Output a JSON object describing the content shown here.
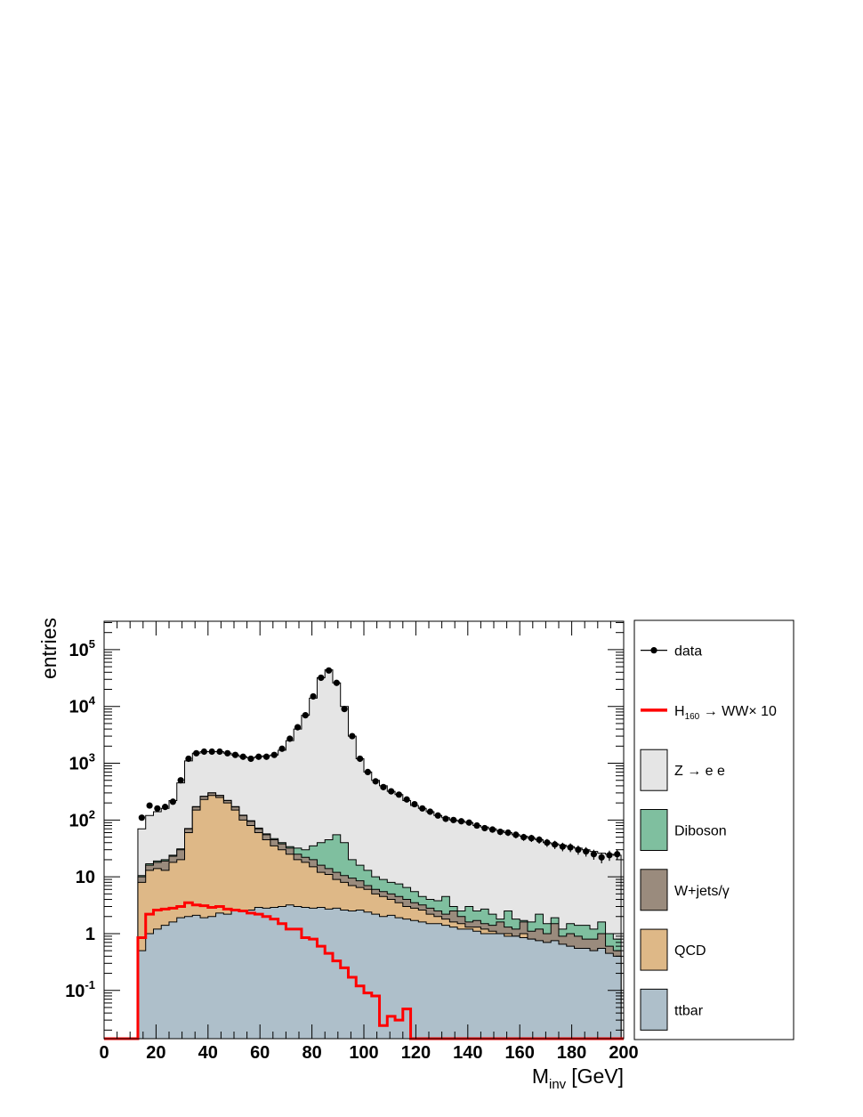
{
  "chart_data": {
    "type": "histogram",
    "title": "",
    "xlabel": "M",
    "xlabel_sub": "inv",
    "xlabel_unit": "[GeV]",
    "ylabel": "entries",
    "xlim": [
      0,
      200
    ],
    "ylim_log": [
      -1.85,
      5.5
    ],
    "log_y": true,
    "grid": false,
    "legend_position": "right",
    "xticks": [
      {
        "value": 0,
        "label": "0"
      },
      {
        "value": 20,
        "label": "20"
      },
      {
        "value": 40,
        "label": "40"
      },
      {
        "value": 60,
        "label": "60"
      },
      {
        "value": 80,
        "label": "80"
      },
      {
        "value": 100,
        "label": "100"
      },
      {
        "value": 120,
        "label": "120"
      },
      {
        "value": 140,
        "label": "140"
      },
      {
        "value": 160,
        "label": "160"
      },
      {
        "value": 180,
        "label": "180"
      },
      {
        "value": 200,
        "label": "200"
      }
    ],
    "yticks": [
      {
        "value": -1,
        "base": "10",
        "exp": "-1"
      },
      {
        "value": 0,
        "base": "1",
        "exp": ""
      },
      {
        "value": 1,
        "base": "10",
        "exp": ""
      },
      {
        "value": 2,
        "base": "10",
        "exp": "2"
      },
      {
        "value": 3,
        "base": "10",
        "exp": "3"
      },
      {
        "value": 4,
        "base": "10",
        "exp": "4"
      },
      {
        "value": 5,
        "base": "10",
        "exp": "5"
      }
    ],
    "bins_x": [
      13,
      16,
      19,
      22,
      25,
      28,
      31,
      34,
      37,
      40,
      43,
      46,
      49,
      52,
      55,
      58,
      61,
      64,
      67,
      70,
      73,
      76,
      79,
      82,
      85,
      88,
      91,
      94,
      97,
      100,
      103,
      106,
      109,
      112,
      115,
      118,
      121,
      124,
      127,
      130,
      133,
      136,
      139,
      142,
      145,
      148,
      151,
      154,
      157,
      160,
      163,
      166,
      169,
      172,
      175,
      178,
      181,
      184,
      187,
      190,
      193,
      196,
      199
    ],
    "stack": [
      {
        "name": "ttbar",
        "color": "#aebfca",
        "cumulative": [
          0.5,
          1.0,
          1.2,
          1.4,
          1.6,
          1.9,
          2.0,
          2.1,
          1.9,
          2.0,
          2.3,
          2.2,
          2.5,
          2.5,
          2.6,
          2.9,
          2.8,
          2.9,
          3.0,
          3.2,
          3.0,
          2.9,
          2.8,
          2.9,
          2.7,
          2.8,
          2.6,
          2.5,
          2.6,
          2.4,
          2.2,
          2.0,
          2.1,
          1.9,
          1.8,
          1.7,
          1.6,
          1.5,
          1.5,
          1.4,
          1.3,
          1.2,
          1.2,
          1.1,
          1.0,
          1.0,
          1.0,
          0.9,
          0.9,
          0.85,
          0.8,
          0.75,
          0.7,
          0.75,
          0.65,
          0.6,
          0.55,
          0.55,
          0.5,
          0.55,
          0.45,
          0.4
        ]
      },
      {
        "name": "QCD",
        "color": "#deb887",
        "cumulative": [
          8.0,
          13.0,
          14.0,
          13.0,
          18.0,
          20.0,
          60.0,
          150.0,
          230.0,
          270.0,
          250.0,
          200.0,
          150.0,
          100.0,
          80.0,
          60.0,
          45.0,
          35.0,
          30.0,
          25.0,
          20.0,
          18.0,
          15.0,
          12.0,
          11.0,
          9.0,
          8.0,
          7.0,
          6.5,
          6.0,
          5.0,
          4.5,
          4.0,
          3.5,
          3.0,
          2.8,
          2.6,
          2.2,
          2.0,
          1.8,
          1.6,
          1.5,
          1.3,
          1.3,
          1.2,
          1.1,
          1.0,
          1.0,
          0.9,
          1.0,
          0.8,
          0.7,
          0.65,
          0.7,
          0.6,
          0.55,
          0.5,
          0.5,
          0.45,
          0.55,
          0.35,
          0.3
        ]
      },
      {
        "name": "W+jets/γ",
        "color": "#9a8b7d",
        "cumulative": [
          10.0,
          16.0,
          18.0,
          19.0,
          23.0,
          30.0,
          70.0,
          170.0,
          260.0,
          300.0,
          270.0,
          220.0,
          170.0,
          120.0,
          95.0,
          70.0,
          55.0,
          45.0,
          38.0,
          32.0,
          25.0,
          22.0,
          20.0,
          16.0,
          14.0,
          12.0,
          10.5,
          9.5,
          8.5,
          7.0,
          6.0,
          5.5,
          5.0,
          4.5,
          4.0,
          3.5,
          3.2,
          2.8,
          2.5,
          2.2,
          2.5,
          2.0,
          1.6,
          1.7,
          1.5,
          1.4,
          1.6,
          1.3,
          1.2,
          1.6,
          1.1,
          1.2,
          1.0,
          1.5,
          0.9,
          1.0,
          0.9,
          0.8,
          0.8,
          1.0,
          0.6,
          0.5
        ]
      },
      {
        "name": "Diboson",
        "color": "#7fbf9f",
        "cumulative": [
          10.5,
          17.0,
          19.0,
          20.0,
          24.0,
          31.0,
          71.0,
          172.0,
          262.0,
          302.0,
          272.0,
          222.0,
          172.0,
          122.0,
          97.0,
          72.0,
          57.0,
          47.0,
          40.0,
          34.0,
          32.0,
          30.0,
          35.0,
          40.0,
          45.0,
          55.0,
          40.0,
          20.0,
          16.0,
          13.0,
          10.0,
          9.0,
          8.0,
          7.5,
          6.5,
          5.5,
          4.5,
          4.0,
          3.8,
          4.5,
          3.0,
          2.5,
          3.0,
          2.5,
          2.7,
          2.2,
          1.8,
          2.5,
          1.8,
          1.7,
          1.6,
          2.2,
          1.5,
          1.9,
          1.2,
          1.5,
          1.4,
          1.4,
          1.2,
          1.6,
          1.0,
          0.8
        ]
      },
      {
        "name": "Z → e e",
        "color": "#e5e5e5",
        "cumulative": [
          70,
          120,
          140,
          160,
          220,
          450,
          1100,
          1500,
          1600,
          1600,
          1600,
          1500,
          1400,
          1300,
          1250,
          1300,
          1350,
          1400,
          1700,
          2500,
          4000,
          7000,
          14000,
          32000,
          44000,
          26000,
          10000,
          3000,
          1200,
          700,
          500,
          400,
          320,
          280,
          220,
          180,
          160,
          140,
          120,
          110,
          100,
          95,
          90,
          80,
          75,
          70,
          65,
          60,
          55,
          52,
          48,
          45,
          40,
          38,
          36,
          34,
          32,
          30,
          28,
          26,
          25,
          24
        ]
      }
    ],
    "data": {
      "name": "data",
      "x": [
        14.5,
        17.5,
        20.5,
        23.5,
        26.5,
        29.5,
        32.5,
        35.5,
        38.5,
        41.5,
        44.5,
        47.5,
        50.5,
        53.5,
        56.5,
        59.5,
        62.5,
        65.5,
        68.5,
        71.5,
        74.5,
        77.5,
        80.5,
        83.5,
        86.5,
        89.5,
        92.5,
        95.5,
        98.5,
        101.5,
        104.5,
        107.5,
        110.5,
        113.5,
        116.5,
        119.5,
        122.5,
        125.5,
        128.5,
        131.5,
        134.5,
        137.5,
        140.5,
        143.5,
        146.5,
        149.5,
        152.5,
        155.5,
        158.5,
        161.5,
        164.5,
        167.5,
        170.5,
        173.5,
        176.5,
        179.5,
        182.5,
        185.5,
        188.5,
        191.5,
        194.5,
        197.5
      ],
      "y": [
        110,
        180,
        160,
        170,
        210,
        500,
        1200,
        1500,
        1600,
        1600,
        1600,
        1500,
        1400,
        1300,
        1200,
        1300,
        1300,
        1400,
        1800,
        2700,
        4300,
        7000,
        15000,
        32000,
        43000,
        26000,
        9000,
        3000,
        1200,
        700,
        480,
        380,
        320,
        280,
        230,
        190,
        160,
        140,
        120,
        105,
        100,
        95,
        90,
        80,
        72,
        68,
        62,
        60,
        55,
        50,
        48,
        45,
        40,
        37,
        34,
        33,
        30,
        28,
        25,
        22,
        24,
        25
      ]
    },
    "signal": {
      "name": "H160 → WW× 10",
      "color": "#ff0000",
      "values": [
        0.85,
        2.2,
        2.6,
        2.7,
        2.8,
        3.0,
        3.5,
        3.2,
        3.1,
        2.9,
        3.0,
        2.7,
        2.6,
        2.5,
        2.3,
        2.2,
        2.0,
        1.8,
        1.5,
        1.2,
        1.2,
        0.85,
        0.8,
        0.6,
        0.45,
        0.33,
        0.25,
        0.17,
        0.12,
        0.09,
        0.08,
        0.024,
        0.035,
        0.03,
        0.047,
        0.001,
        0.001,
        0.001,
        0.001,
        0.001,
        0.001,
        0.001,
        0.001,
        0.001,
        0.001,
        0.001,
        0.001,
        0.001,
        0.001,
        0.001,
        0.001,
        0.001,
        0.001,
        0.001,
        0.001,
        0.001,
        0.001,
        0.001,
        0.001,
        0.001,
        0.001,
        0.001
      ]
    },
    "legend": [
      {
        "key": "data",
        "type": "marker",
        "label": "data"
      },
      {
        "key": "signal",
        "type": "line",
        "label_main": "H",
        "label_sub": "160",
        "label_rest": " → WW× 10",
        "color": "#ff0000"
      },
      {
        "key": "z",
        "type": "box",
        "label": "Z → e e",
        "color": "#e5e5e5"
      },
      {
        "key": "diboson",
        "type": "box",
        "label": "Diboson",
        "color": "#7fbf9f"
      },
      {
        "key": "wjets",
        "type": "box",
        "label": "W+jets/γ",
        "color": "#9a8b7d"
      },
      {
        "key": "qcd",
        "type": "box",
        "label": "QCD",
        "color": "#deb887"
      },
      {
        "key": "ttbar",
        "type": "box",
        "label": "ttbar",
        "color": "#aebfca"
      }
    ]
  }
}
